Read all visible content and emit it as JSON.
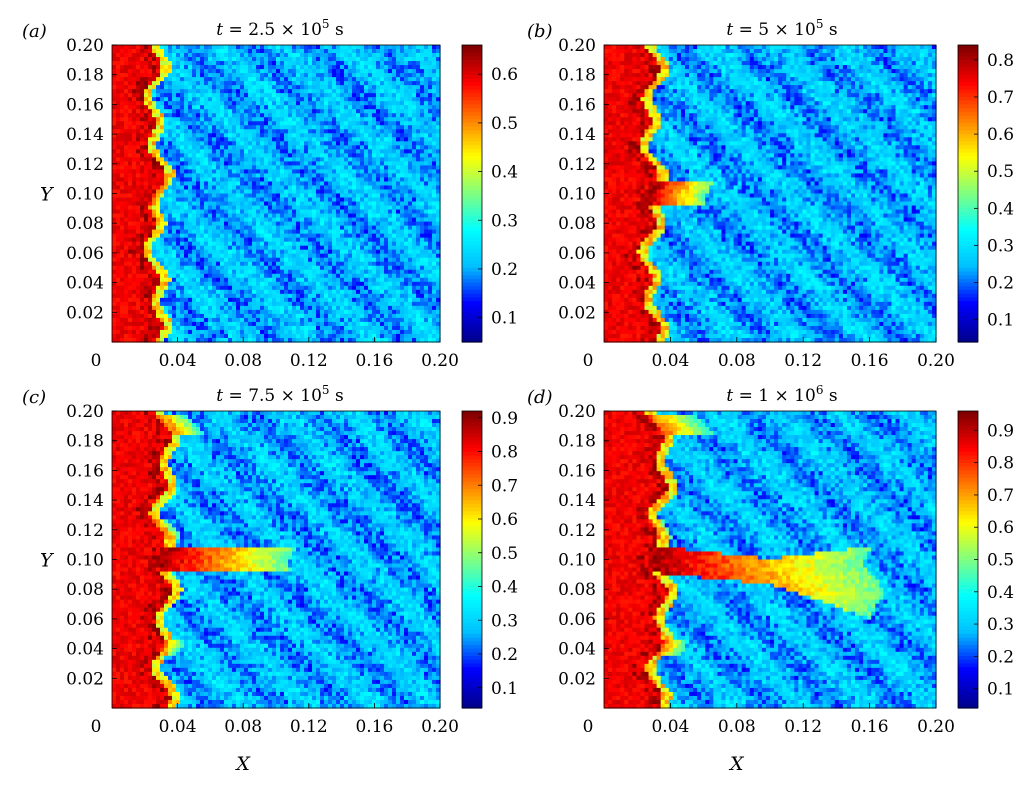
{
  "chart_data": [
    {
      "type": "heatmap",
      "panel_label": "(a)",
      "title_prefix": "t",
      "title_rest": " = 2.5 × 10",
      "title_exp": "5",
      "title_unit": " s",
      "xlabel": "",
      "ylabel": "Y",
      "xlim": [
        0,
        0.2
      ],
      "ylim": [
        0,
        0.2
      ],
      "x_ticks": [
        "0",
        "0.04",
        "0.08",
        "0.12",
        "0.16",
        "0.20"
      ],
      "y_ticks": [
        "0.02",
        "0.04",
        "0.06",
        "0.08",
        "0.10",
        "0.12",
        "0.14",
        "0.16",
        "0.18",
        "0.20"
      ],
      "colorbar_ticks": [
        "0.1",
        "0.2",
        "0.3",
        "0.4",
        "0.5",
        "0.6"
      ],
      "colorbar_range": [
        0.05,
        0.66
      ],
      "front_x": 0.025,
      "finger_length": 0.008,
      "extras": []
    },
    {
      "type": "heatmap",
      "panel_label": "(b)",
      "title_prefix": "t",
      "title_rest": " = 5 × 10",
      "title_exp": "5",
      "title_unit": " s",
      "xlabel": "",
      "ylabel": "",
      "xlim": [
        0,
        0.2
      ],
      "ylim": [
        0,
        0.2
      ],
      "x_ticks": [
        "0",
        "0.04",
        "0.08",
        "0.12",
        "0.16",
        "0.20"
      ],
      "y_ticks": [
        "0.02",
        "0.04",
        "0.06",
        "0.08",
        "0.10",
        "0.12",
        "0.14",
        "0.16",
        "0.18",
        "0.20"
      ],
      "colorbar_ticks": [
        "0.1",
        "0.2",
        "0.3",
        "0.4",
        "0.5",
        "0.6",
        "0.7",
        "0.8"
      ],
      "colorbar_range": [
        0.04,
        0.84
      ],
      "front_x": 0.027,
      "finger_length": 0.035,
      "extras": []
    },
    {
      "type": "heatmap",
      "panel_label": "(c)",
      "title_prefix": "t",
      "title_rest": " = 7.5 × 10",
      "title_exp": "5",
      "title_unit": " s",
      "xlabel": "X",
      "ylabel": "Y",
      "xlim": [
        0,
        0.2
      ],
      "ylim": [
        0,
        0.2
      ],
      "x_ticks": [
        "0",
        "0.04",
        "0.08",
        "0.12",
        "0.16",
        "0.20"
      ],
      "y_ticks": [
        "0.02",
        "0.04",
        "0.06",
        "0.08",
        "0.10",
        "0.12",
        "0.14",
        "0.16",
        "0.18",
        "0.20"
      ],
      "colorbar_ticks": [
        "0.1",
        "0.2",
        "0.3",
        "0.4",
        "0.5",
        "0.6",
        "0.7",
        "0.8",
        "0.9"
      ],
      "colorbar_range": [
        0.04,
        0.92
      ],
      "front_x": 0.03,
      "finger_length": 0.08,
      "extras": [
        [
          0.19,
          0.02
        ],
        [
          0.12,
          0.01
        ],
        [
          0.04,
          0.012
        ]
      ]
    },
    {
      "type": "heatmap",
      "panel_label": "(d)",
      "title_prefix": "t",
      "title_rest": " = 1 × 10",
      "title_exp": "6",
      "title_unit": " s",
      "xlabel": "X",
      "ylabel": "",
      "xlim": [
        0,
        0.2
      ],
      "ylim": [
        0,
        0.2
      ],
      "x_ticks": [
        "0",
        "0.04",
        "0.08",
        "0.12",
        "0.16",
        "0.20"
      ],
      "y_ticks": [
        "0.02",
        "0.04",
        "0.06",
        "0.08",
        "0.10",
        "0.12",
        "0.14",
        "0.16",
        "0.18",
        "0.20"
      ],
      "colorbar_ticks": [
        "0.1",
        "0.2",
        "0.3",
        "0.4",
        "0.5",
        "0.6",
        "0.7",
        "0.8",
        "0.9"
      ],
      "colorbar_range": [
        0.04,
        0.96
      ],
      "front_x": 0.032,
      "finger_length": 0.13,
      "extras": [
        [
          0.19,
          0.03
        ],
        [
          0.04,
          0.015
        ],
        [
          0.12,
          0.008
        ]
      ]
    }
  ],
  "colormap": [
    "#00008f",
    "#0000ff",
    "#00bfff",
    "#00ffff",
    "#80ff80",
    "#ffff00",
    "#ff8000",
    "#ff0000",
    "#800000"
  ]
}
